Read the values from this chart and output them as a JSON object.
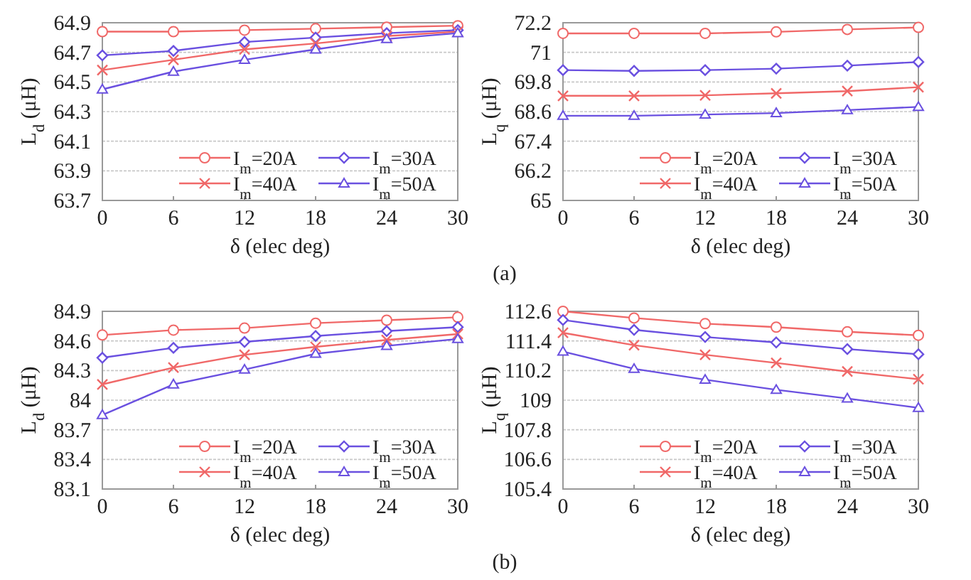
{
  "chart_data": [
    {
      "type": "line",
      "ylabel": "L$_{d}$ (μH)",
      "xlabel": "δ (elec deg)",
      "x": [
        0,
        6,
        12,
        18,
        24,
        30
      ],
      "xlim": [
        0,
        30
      ],
      "xticks": [
        0,
        6,
        12,
        18,
        24,
        30
      ],
      "ylim": [
        63.7,
        64.9
      ],
      "yticks": [
        63.7,
        63.9,
        64.1,
        64.3,
        64.5,
        64.7,
        64.9
      ],
      "grid": "y",
      "legend": "bottom",
      "line_style": "solid",
      "annotations": [
        "(a)"
      ],
      "series": [
        {
          "name": "I$_{m}$=20A",
          "color": "#f06868",
          "marker": "circle",
          "values": [
            64.84,
            64.84,
            64.85,
            64.86,
            64.87,
            64.88
          ]
        },
        {
          "name": "I$_{m}$=30A",
          "color": "#6a50e0",
          "marker": "diamond",
          "values": [
            64.68,
            64.71,
            64.77,
            64.8,
            64.83,
            64.85
          ]
        },
        {
          "name": "I$_{m}$=40A",
          "color": "#f06868",
          "marker": "cross",
          "values": [
            64.58,
            64.65,
            64.72,
            64.76,
            64.81,
            64.84
          ]
        },
        {
          "name": "I$_{m}$=50A",
          "color": "#6a50e0",
          "marker": "triangle",
          "values": [
            64.45,
            64.57,
            64.65,
            64.72,
            64.79,
            64.83
          ]
        }
      ]
    },
    {
      "type": "line",
      "ylabel": "L$_{q}$ (μH)",
      "xlabel": "δ (elec deg)",
      "x": [
        0,
        6,
        12,
        18,
        24,
        30
      ],
      "xlim": [
        0,
        30
      ],
      "xticks": [
        0,
        6,
        12,
        18,
        24,
        30
      ],
      "ylim": [
        65,
        72.2
      ],
      "yticks": [
        65,
        66.2,
        67.4,
        68.6,
        69.8,
        71,
        72.2
      ],
      "grid": "y",
      "legend": "bottom",
      "line_style": "solid",
      "series": [
        {
          "name": "I$_{m}$=20A",
          "color": "#f06868",
          "marker": "circle",
          "values": [
            71.77,
            71.77,
            71.77,
            71.83,
            71.93,
            72.01
          ]
        },
        {
          "name": "I$_{m}$=30A",
          "color": "#6a50e0",
          "marker": "diamond",
          "values": [
            70.28,
            70.25,
            70.28,
            70.34,
            70.46,
            70.61
          ]
        },
        {
          "name": "I$_{m}$=40A",
          "color": "#f06868",
          "marker": "cross",
          "values": [
            69.24,
            69.24,
            69.26,
            69.34,
            69.43,
            69.59
          ]
        },
        {
          "name": "I$_{m}$=50A",
          "color": "#6a50e0",
          "marker": "triangle",
          "values": [
            68.43,
            68.43,
            68.48,
            68.54,
            68.66,
            68.79
          ]
        }
      ]
    },
    {
      "type": "line",
      "ylabel": "L$_{d}$ (μH)",
      "xlabel": "δ (elec deg)",
      "x": [
        0,
        6,
        12,
        18,
        24,
        30
      ],
      "xlim": [
        0,
        30
      ],
      "xticks": [
        0,
        6,
        12,
        18,
        24,
        30
      ],
      "ylim": [
        83.1,
        84.9
      ],
      "yticks": [
        83.1,
        83.4,
        83.7,
        84,
        84.3,
        84.6,
        84.9
      ],
      "grid": "y",
      "legend": "bottom",
      "line_style": "solid",
      "annotations": [
        "(b)"
      ],
      "series": [
        {
          "name": "I$_{m}$=20A",
          "color": "#f06868",
          "marker": "circle",
          "values": [
            84.66,
            84.71,
            84.73,
            84.78,
            84.81,
            84.84
          ]
        },
        {
          "name": "I$_{m}$=30A",
          "color": "#6a50e0",
          "marker": "diamond",
          "values": [
            84.43,
            84.53,
            84.59,
            84.65,
            84.7,
            84.74
          ]
        },
        {
          "name": "I$_{m}$=40A",
          "color": "#f06868",
          "marker": "cross",
          "values": [
            84.16,
            84.33,
            84.46,
            84.54,
            84.61,
            84.67
          ]
        },
        {
          "name": "I$_{m}$=50A",
          "color": "#6a50e0",
          "marker": "triangle",
          "values": [
            83.85,
            84.16,
            84.31,
            84.47,
            84.55,
            84.62
          ]
        }
      ]
    },
    {
      "type": "line",
      "ylabel": "L$_{q}$ (μH)",
      "xlabel": "δ (elec deg)",
      "x": [
        0,
        6,
        12,
        18,
        24,
        30
      ],
      "xlim": [
        0,
        30
      ],
      "xticks": [
        0,
        6,
        12,
        18,
        24,
        30
      ],
      "ylim": [
        105.4,
        112.6
      ],
      "yticks": [
        105.4,
        106.6,
        107.8,
        109,
        110.2,
        111.4,
        112.6
      ],
      "grid": "y",
      "legend": "bottom",
      "line_style": "solid",
      "series": [
        {
          "name": "I$_{m}$=20A",
          "color": "#f06868",
          "marker": "circle",
          "values": [
            112.6,
            112.33,
            112.1,
            111.96,
            111.77,
            111.63
          ]
        },
        {
          "name": "I$_{m}$=30A",
          "color": "#6a50e0",
          "marker": "diamond",
          "values": [
            112.25,
            111.85,
            111.56,
            111.34,
            111.07,
            110.86
          ]
        },
        {
          "name": "I$_{m}$=40A",
          "color": "#f06868",
          "marker": "cross",
          "values": [
            111.73,
            111.23,
            110.84,
            110.51,
            110.16,
            109.85
          ]
        },
        {
          "name": "I$_{m}$=50A",
          "color": "#6a50e0",
          "marker": "triangle",
          "values": [
            110.97,
            110.27,
            109.83,
            109.42,
            109.07,
            108.69
          ]
        }
      ]
    }
  ]
}
